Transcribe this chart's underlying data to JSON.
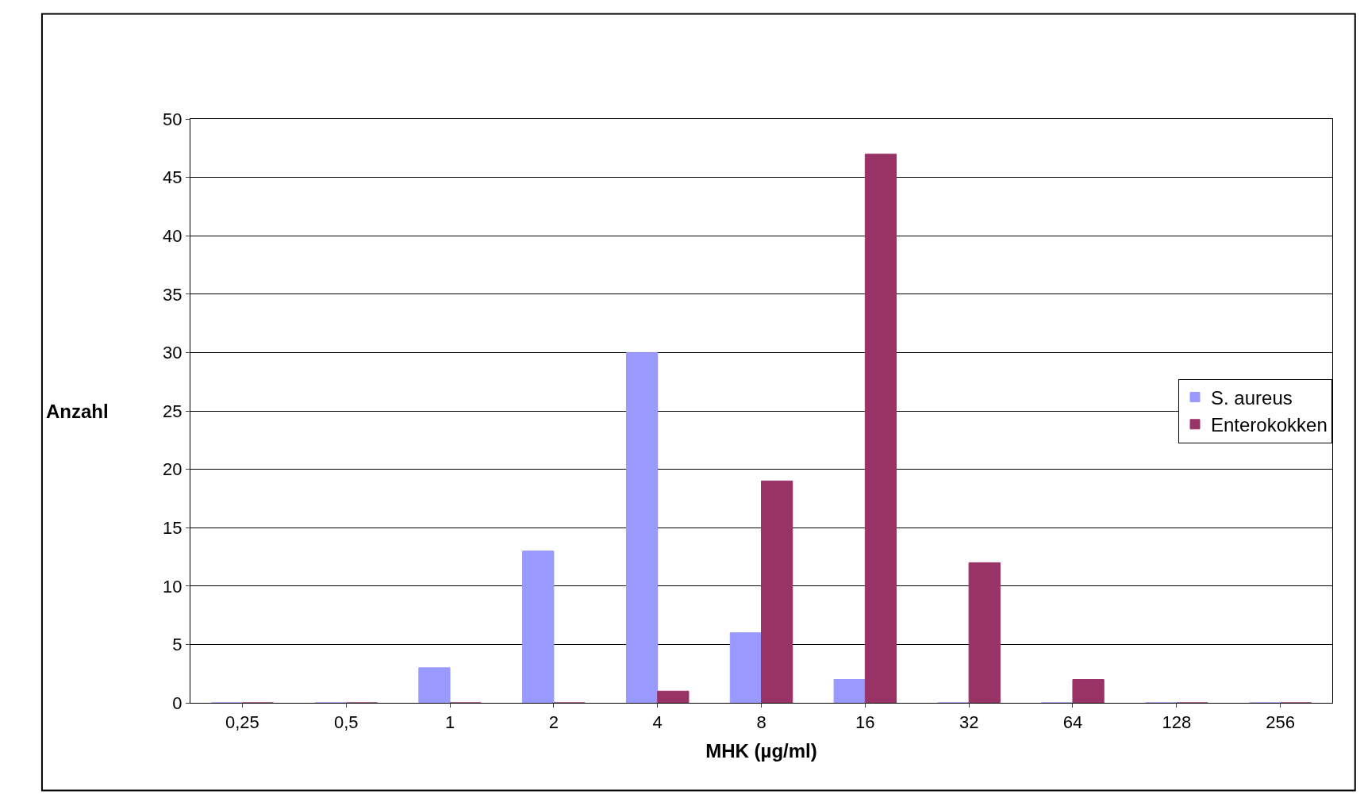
{
  "chart_data": {
    "type": "bar",
    "xlabel": "MHK (µg/ml)",
    "ylabel": "Anzahl",
    "categories": [
      "0,25",
      "0,5",
      "1",
      "2",
      "4",
      "8",
      "16",
      "32",
      "64",
      "128",
      "256"
    ],
    "series": [
      {
        "name": "S. aureus",
        "color": "#9999ff",
        "values": [
          0,
          0,
          3,
          13,
          30,
          6,
          2,
          0,
          0,
          0,
          0
        ]
      },
      {
        "name": "Enterokokken",
        "color": "#993366",
        "values": [
          0,
          0,
          0,
          0,
          1,
          19,
          47,
          12,
          2,
          0,
          0
        ]
      }
    ],
    "ylim": [
      0,
      50
    ],
    "yticks": [
      0,
      5,
      10,
      15,
      20,
      25,
      30,
      35,
      40,
      45,
      50
    ],
    "grid": "y",
    "legend": "right"
  }
}
